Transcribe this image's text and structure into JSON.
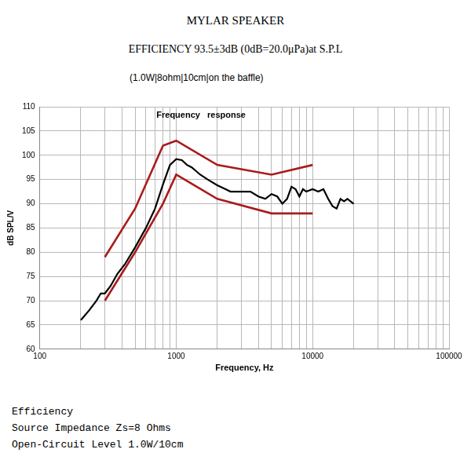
{
  "header": {
    "title": "MYLAR SPEAKER",
    "subtitle": "EFFICIENCY 93.5±3dB (0dB=20.0μPa)at S.P.L",
    "note": "(1.0W|8ohm|10cm|on the baffle)"
  },
  "chart_data": {
    "type": "line",
    "annotation": "Frequency   response",
    "x_label": "Frequency, Hz",
    "y_label": "dB SPL/V",
    "log": "x",
    "grid": true,
    "xlim": [
      100,
      100000
    ],
    "xticks": [
      100,
      1000,
      10000,
      100000
    ],
    "ylim": [
      60,
      110
    ],
    "yticks": [
      60,
      65,
      70,
      75,
      80,
      85,
      90,
      95,
      100,
      105,
      110
    ],
    "series": [
      {
        "color": "#a81c1c",
        "x": [
          300,
          500,
          800,
          1000,
          2000,
          5000,
          10000
        ],
        "values": [
          79,
          89,
          102,
          103,
          98,
          96,
          98
        ]
      },
      {
        "color": "#a81c1c",
        "x": [
          300,
          500,
          800,
          1000,
          2000,
          5000,
          10000
        ],
        "values": [
          70,
          80,
          90,
          96,
          91,
          88,
          88
        ]
      },
      {
        "color": "#000000",
        "x": [
          200,
          230,
          260,
          280,
          300,
          330,
          370,
          420,
          500,
          600,
          700,
          800,
          900,
          1000,
          1100,
          1200,
          1300,
          1500,
          1700,
          2000,
          2300,
          2500,
          3000,
          3500,
          4000,
          4500,
          5000,
          5500,
          6000,
          6500,
          7000,
          7500,
          8000,
          8500,
          9000,
          10000,
          11000,
          12000,
          13000,
          14000,
          15000,
          16000,
          17000,
          18000,
          20000
        ],
        "values": [
          66,
          68,
          70,
          71.5,
          71.5,
          73,
          75.5,
          77.5,
          81,
          85,
          89,
          94,
          98,
          99.2,
          99,
          98,
          97.5,
          96,
          95,
          93.8,
          93,
          92.5,
          92.5,
          92.5,
          91.5,
          91,
          92,
          91.5,
          90,
          91,
          93.5,
          93,
          91.5,
          93,
          92.5,
          93,
          92.5,
          93,
          91,
          89.5,
          89,
          91,
          90.5,
          91,
          90
        ]
      }
    ]
  },
  "footer": {
    "lines": [
      "Efficiency",
      "Source Impedance Zs=8 Ohms",
      "Open-Circuit Level 1.0W/10cm"
    ]
  }
}
